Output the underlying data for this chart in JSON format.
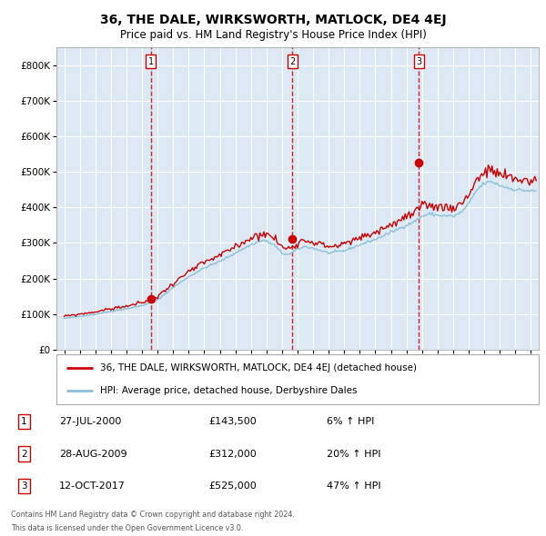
{
  "title": "36, THE DALE, WIRKSWORTH, MATLOCK, DE4 4EJ",
  "subtitle": "Price paid vs. HM Land Registry's House Price Index (HPI)",
  "legend_line1": "36, THE DALE, WIRKSWORTH, MATLOCK, DE4 4EJ (detached house)",
  "legend_line2": "HPI: Average price, detached house, Derbyshire Dales",
  "footer1": "Contains HM Land Registry data © Crown copyright and database right 2024.",
  "footer2": "This data is licensed under the Open Government Licence v3.0.",
  "transactions": [
    {
      "label": "1",
      "date": "27-JUL-2000",
      "price": 143500,
      "pct": "6%",
      "direction": "↑",
      "x_year": 2000.57
    },
    {
      "label": "2",
      "date": "28-AUG-2009",
      "price": 312000,
      "pct": "20%",
      "direction": "↑",
      "x_year": 2009.66
    },
    {
      "label": "3",
      "date": "12-OCT-2017",
      "price": 525000,
      "pct": "47%",
      "direction": "↑",
      "x_year": 2017.78
    }
  ],
  "hpi_color": "#8bbfd8",
  "price_color": "#cc0000",
  "dot_color": "#cc0000",
  "vline_color": "#cc0000",
  "background_color": "#dce9f5",
  "grid_color": "#ffffff",
  "ylim": [
    0,
    850000
  ],
  "yticks": [
    0,
    100000,
    200000,
    300000,
    400000,
    500000,
    600000,
    700000,
    800000
  ],
  "xlim_start": 1994.5,
  "xlim_end": 2025.5,
  "xticks": [
    1995,
    1996,
    1997,
    1998,
    1999,
    2000,
    2001,
    2002,
    2003,
    2004,
    2005,
    2006,
    2007,
    2008,
    2009,
    2010,
    2011,
    2012,
    2013,
    2014,
    2015,
    2016,
    2017,
    2018,
    2019,
    2020,
    2021,
    2022,
    2023,
    2024,
    2025
  ],
  "hpi_anchors": [
    [
      1995.0,
      88000
    ],
    [
      1996.0,
      94000
    ],
    [
      1997.0,
      100000
    ],
    [
      1998.0,
      108000
    ],
    [
      1999.0,
      115000
    ],
    [
      2000.0,
      124000
    ],
    [
      2001.0,
      140000
    ],
    [
      2002.0,
      175000
    ],
    [
      2003.0,
      205000
    ],
    [
      2004.0,
      230000
    ],
    [
      2005.0,
      248000
    ],
    [
      2006.0,
      272000
    ],
    [
      2007.0,
      295000
    ],
    [
      2007.8,
      308000
    ],
    [
      2008.5,
      295000
    ],
    [
      2009.0,
      270000
    ],
    [
      2009.5,
      268000
    ],
    [
      2010.0,
      283000
    ],
    [
      2010.5,
      290000
    ],
    [
      2011.0,
      285000
    ],
    [
      2012.0,
      272000
    ],
    [
      2013.0,
      278000
    ],
    [
      2014.0,
      295000
    ],
    [
      2015.0,
      310000
    ],
    [
      2016.0,
      330000
    ],
    [
      2017.0,
      350000
    ],
    [
      2017.5,
      360000
    ],
    [
      2018.0,
      375000
    ],
    [
      2018.5,
      382000
    ],
    [
      2019.0,
      378000
    ],
    [
      2020.0,
      375000
    ],
    [
      2020.5,
      385000
    ],
    [
      2021.0,
      410000
    ],
    [
      2021.5,
      448000
    ],
    [
      2022.0,
      468000
    ],
    [
      2022.5,
      472000
    ],
    [
      2023.0,
      462000
    ],
    [
      2023.5,
      455000
    ],
    [
      2024.0,
      450000
    ],
    [
      2024.5,
      448000
    ],
    [
      2025.3,
      445000
    ]
  ],
  "pp_scale": 1.065,
  "pp_noise": 0.018
}
